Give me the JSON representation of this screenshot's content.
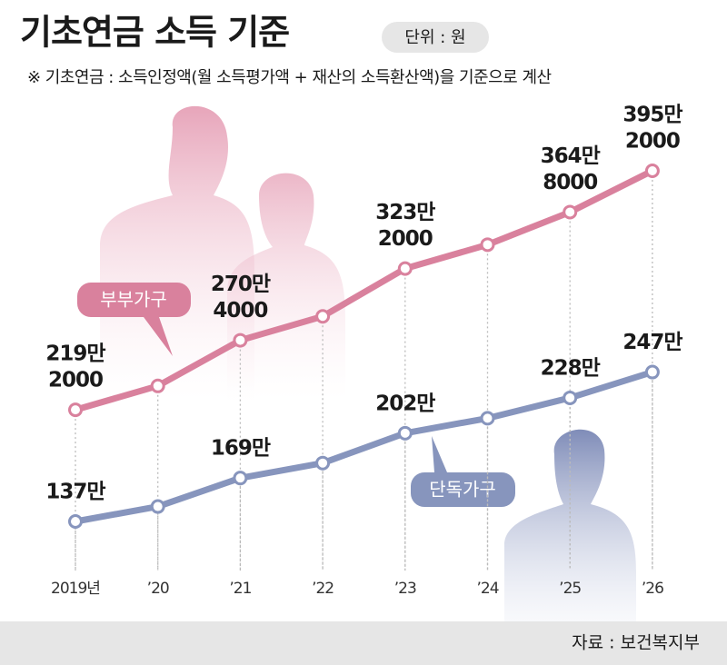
{
  "chart_data": {
    "type": "line",
    "title": "기초연금 소득 기준",
    "unit": "단위 : 원",
    "subtitle": "※ 기초연금 : 소득인정액(월 소득평가액 + 재산의 소득환산액)을 기준으로 계산",
    "source": "자료 : 보건복지부",
    "categories": [
      "2019년",
      "’20",
      "’21",
      "’22",
      "’23",
      "’24",
      "’25",
      "’26"
    ],
    "series": [
      {
        "name": "부부가구",
        "color": "#d9819d",
        "values": [
          2192000,
          2368000,
          2704000,
          2880000,
          3232000,
          3408000,
          3648000,
          3952000
        ],
        "value_labels": [
          [
            "219만",
            "2000"
          ],
          null,
          [
            "270만",
            "4000"
          ],
          null,
          [
            "323만",
            "2000"
          ],
          null,
          [
            "364만",
            "8000"
          ],
          [
            "395만",
            "2000"
          ]
        ]
      },
      {
        "name": "단독가구",
        "color": "#8795bd",
        "values": [
          1370000,
          1480000,
          1690000,
          1800000,
          2020000,
          2130000,
          2280000,
          2470000
        ],
        "value_labels": [
          [
            "137만"
          ],
          null,
          [
            "169만"
          ],
          null,
          [
            "202만"
          ],
          null,
          [
            "228만"
          ],
          [
            "247만"
          ]
        ]
      }
    ]
  }
}
